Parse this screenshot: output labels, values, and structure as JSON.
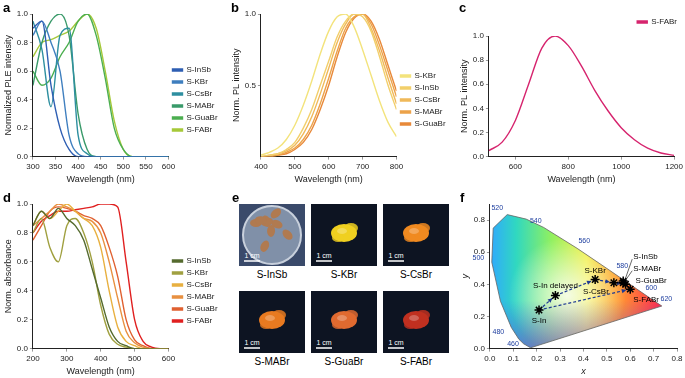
{
  "chart_data": [
    {
      "type": "line",
      "title": "a",
      "x_label": "Wavelength (nm)",
      "y_label": "Normalized PLE intensity",
      "xlim": [
        300,
        600
      ],
      "xticks": [
        300,
        350,
        400,
        450,
        500,
        550,
        600
      ],
      "ylim": [
        0,
        1
      ],
      "yticks": [
        {
          "value": 0,
          "label": "0.0"
        },
        0.2,
        0.4,
        0.6,
        0.8,
        {
          "value": 1,
          "label": "1.0"
        }
      ],
      "grid": false,
      "legend": "right",
      "x": [
        300,
        320,
        340,
        360,
        380,
        400,
        420,
        440,
        460,
        480,
        500,
        520,
        540,
        560,
        580,
        600
      ],
      "series": [
        {
          "name": "S-InSb",
          "color": "#2f5fb3",
          "values": [
            0.9,
            0.95,
            0.5,
            0.2,
            0.05,
            0,
            0,
            0,
            0,
            0,
            0,
            0,
            0,
            0,
            0,
            0
          ]
        },
        {
          "name": "S-KBr",
          "color": "#3f7fbf",
          "values": [
            0.85,
            0.95,
            0.8,
            0.6,
            0.15,
            0.02,
            0,
            0,
            0,
            0,
            0,
            0,
            0,
            0,
            0,
            0
          ]
        },
        {
          "name": "S-CsBr",
          "color": "#2e8fa0",
          "values": [
            0.95,
            0.75,
            0.35,
            0.85,
            0.9,
            0.15,
            0.02,
            0,
            0,
            0,
            0,
            0,
            0,
            0,
            0,
            0
          ]
        },
        {
          "name": "S-MABr",
          "color": "#3a9a6a",
          "values": [
            0.5,
            0.8,
            0.95,
            1.0,
            0.85,
            0.3,
            0.05,
            0,
            0,
            0,
            0,
            0,
            0,
            0,
            0,
            0
          ]
        },
        {
          "name": "S-GuaBr",
          "color": "#4caf50",
          "values": [
            0.6,
            0.5,
            0.55,
            0.7,
            0.8,
            0.95,
            1.0,
            0.85,
            0.55,
            0.2,
            0.05,
            0,
            0,
            0,
            0,
            0
          ]
        },
        {
          "name": "S-FABr",
          "color": "#a6c93a",
          "values": [
            0.7,
            0.8,
            0.82,
            0.85,
            0.88,
            0.95,
            1.0,
            0.9,
            0.6,
            0.25,
            0.05,
            0,
            0,
            0,
            0,
            0
          ]
        }
      ]
    },
    {
      "type": "line",
      "title": "b",
      "x_label": "Wavelength (nm)",
      "y_label": "Norm. PL intensity",
      "xlim": [
        400,
        800
      ],
      "xticks": [
        400,
        500,
        600,
        700,
        800
      ],
      "ylim": [
        0,
        1
      ],
      "yticks": [
        0.5,
        {
          "value": 1,
          "label": "1.0"
        }
      ],
      "grid": false,
      "legend": "right",
      "x": [
        400,
        425,
        450,
        475,
        500,
        525,
        550,
        575,
        600,
        625,
        650,
        675,
        700,
        725,
        750,
        775,
        800
      ],
      "series": [
        {
          "name": "S-KBr",
          "color": "#f3e37c",
          "values": [
            0.01,
            0.03,
            0.06,
            0.12,
            0.22,
            0.36,
            0.53,
            0.72,
            0.88,
            0.98,
            1.0,
            0.91,
            0.75,
            0.57,
            0.39,
            0.24,
            0.14
          ]
        },
        {
          "name": "S-InSb",
          "color": "#f2cf6b",
          "values": [
            0.0,
            0.01,
            0.02,
            0.05,
            0.1,
            0.2,
            0.33,
            0.5,
            0.67,
            0.84,
            0.95,
            1.0,
            0.98,
            0.88,
            0.7,
            0.5,
            0.33
          ]
        },
        {
          "name": "S-CsBr",
          "color": "#f0b95a",
          "values": [
            0.0,
            0.01,
            0.02,
            0.04,
            0.08,
            0.16,
            0.28,
            0.44,
            0.62,
            0.8,
            0.93,
            1.0,
            1.0,
            0.9,
            0.74,
            0.55,
            0.37
          ]
        },
        {
          "name": "S-MABr",
          "color": "#eca24a",
          "values": [
            0.0,
            0.0,
            0.01,
            0.03,
            0.06,
            0.12,
            0.22,
            0.37,
            0.55,
            0.74,
            0.9,
            0.98,
            1.0,
            0.93,
            0.78,
            0.6,
            0.42
          ]
        },
        {
          "name": "S-GuaBr",
          "color": "#e8893a",
          "values": [
            0.0,
            0.0,
            0.01,
            0.02,
            0.05,
            0.1,
            0.19,
            0.33,
            0.5,
            0.7,
            0.87,
            0.97,
            1.0,
            0.95,
            0.82,
            0.64,
            0.46
          ]
        }
      ]
    },
    {
      "type": "line",
      "title": "c",
      "x_label": "Wavelength (nm)",
      "y_label": "Norm. PL intensity",
      "xlim": [
        500,
        1200
      ],
      "xticks": [
        600,
        800,
        1000,
        1200
      ],
      "ylim": [
        0,
        1
      ],
      "yticks": [
        {
          "value": 0,
          "label": "0.0"
        },
        0.2,
        0.4,
        0.6,
        0.8,
        {
          "value": 1,
          "label": "1.0"
        }
      ],
      "grid": false,
      "legend": "top",
      "x": [
        500,
        550,
        600,
        650,
        700,
        750,
        800,
        850,
        900,
        950,
        1000,
        1050,
        1100,
        1150,
        1200
      ],
      "series": [
        {
          "name": "S-FABr",
          "color": "#d6246e",
          "values": [
            0.05,
            0.12,
            0.3,
            0.6,
            0.9,
            1.0,
            0.92,
            0.75,
            0.55,
            0.38,
            0.24,
            0.14,
            0.07,
            0.03,
            0.01
          ]
        }
      ]
    },
    {
      "type": "line",
      "title": "d",
      "x_label": "Wavelength (nm)",
      "y_label": "Norm. absorbance",
      "xlim": [
        200,
        600
      ],
      "xticks": [
        200,
        300,
        400,
        500,
        600
      ],
      "ylim": [
        0,
        1
      ],
      "yticks": [
        {
          "value": 0,
          "label": "0.0"
        },
        0.2,
        0.4,
        0.6,
        0.8,
        {
          "value": 1,
          "label": "1.0"
        }
      ],
      "grid": false,
      "legend": "right",
      "x": [
        200,
        225,
        250,
        275,
        300,
        325,
        350,
        375,
        400,
        425,
        450,
        475,
        500,
        525,
        550,
        575,
        600
      ],
      "series": [
        {
          "name": "S-InSb",
          "color": "#556b2f",
          "values": [
            0.85,
            0.95,
            0.9,
            0.97,
            0.9,
            0.85,
            0.75,
            0.55,
            0.35,
            0.15,
            0.05,
            0.02,
            0,
            0,
            0,
            0,
            0
          ]
        },
        {
          "name": "S-KBr",
          "color": "#a0a040",
          "values": [
            0.8,
            0.9,
            0.7,
            0.6,
            0.85,
            0.9,
            0.8,
            0.6,
            0.3,
            0.1,
            0.03,
            0.01,
            0,
            0,
            0,
            0,
            0
          ]
        },
        {
          "name": "S-CsBr",
          "color": "#e8b040",
          "values": [
            0.85,
            0.95,
            0.9,
            0.95,
            1.0,
            0.95,
            0.9,
            0.85,
            0.7,
            0.4,
            0.15,
            0.05,
            0.02,
            0,
            0,
            0,
            0
          ]
        },
        {
          "name": "S-MABr",
          "color": "#e89040",
          "values": [
            0.85,
            0.9,
            0.95,
            1.0,
            0.98,
            0.95,
            0.9,
            0.88,
            0.8,
            0.6,
            0.35,
            0.12,
            0.04,
            0.01,
            0,
            0,
            0
          ]
        },
        {
          "name": "S-GuaBr",
          "color": "#e06030",
          "values": [
            0.75,
            0.85,
            0.95,
            0.98,
            0.97,
            0.95,
            0.92,
            0.9,
            0.85,
            0.7,
            0.5,
            0.2,
            0.06,
            0.02,
            0,
            0,
            0
          ]
        },
        {
          "name": "S-FABr",
          "color": "#e02020",
          "values": [
            0.8,
            0.88,
            0.92,
            0.95,
            0.95,
            0.96,
            0.97,
            0.98,
            1.0,
            1.0,
            0.98,
            0.6,
            0.2,
            0.05,
            0.01,
            0,
            0
          ]
        }
      ]
    },
    {
      "type": "scatter",
      "title": "f",
      "x_label": "x",
      "y_label": "y",
      "xlim": [
        0,
        0.8
      ],
      "xticks": [
        {
          "value": 0,
          "label": "0.0"
        },
        0.1,
        0.2,
        0.3,
        0.4,
        0.5,
        0.6,
        0.7,
        0.8
      ],
      "ylim": [
        0,
        0.9
      ],
      "yticks": [
        {
          "value": 0,
          "label": "0.0"
        },
        0.2,
        0.4,
        0.6,
        0.8
      ],
      "grid": false,
      "marker": "star",
      "color": "#000000",
      "points": [
        {
          "label": "S-In",
          "x": 0.21,
          "y": 0.24
        },
        {
          "label": "S-In delayed",
          "x": 0.28,
          "y": 0.33
        },
        {
          "label": "S-KBr",
          "x": 0.45,
          "y": 0.43
        },
        {
          "label": "S-CsBr",
          "x": 0.53,
          "y": 0.41
        },
        {
          "label": "S-InSb",
          "x": 0.57,
          "y": 0.42
        },
        {
          "label": "S-MABr",
          "x": 0.57,
          "y": 0.41
        },
        {
          "label": "S-GuaBr",
          "x": 0.58,
          "y": 0.4
        },
        {
          "label": "S-FABr",
          "x": 0.6,
          "y": 0.37
        }
      ],
      "paths": {
        "color": "#1f3a93",
        "line_style": "dashed",
        "routes": [
          [
            "S-In",
            "S-In delayed",
            "S-KBr",
            "S-CsBr",
            "S-GuaBr"
          ],
          [
            "S-In",
            "S-FABr"
          ]
        ]
      },
      "locus": {
        "color": "#2040a0",
        "x": [
          0.174,
          0.144,
          0.124,
          0.091,
          0.045,
          0.008,
          0.014,
          0.074,
          0.155,
          0.23,
          0.373,
          0.512,
          0.627,
          0.691,
          0.735
        ],
        "y": [
          0.005,
          0.03,
          0.058,
          0.133,
          0.295,
          0.538,
          0.75,
          0.834,
          0.806,
          0.754,
          0.624,
          0.487,
          0.372,
          0.308,
          0.265
        ],
        "labels": [
          null,
          460,
          null,
          480,
          null,
          500,
          null,
          520,
          null,
          540,
          560,
          580,
          600,
          620,
          null
        ]
      }
    }
  ],
  "photos": {
    "title": "e",
    "items": [
      {
        "label": "S-InSb",
        "scale_bar": "1 cm",
        "color": "#b07a50"
      },
      {
        "label": "S-KBr",
        "scale_bar": "1 cm",
        "color": "#f0d020"
      },
      {
        "label": "S-CsBr",
        "scale_bar": "1 cm",
        "color": "#f08a20"
      },
      {
        "label": "S-MABr",
        "scale_bar": "1 cm",
        "color": "#e87a20"
      },
      {
        "label": "S-GuaBr",
        "scale_bar": "1 cm",
        "color": "#e06a30"
      },
      {
        "label": "S-FABr",
        "scale_bar": "1 cm",
        "color": "#c03020"
      }
    ]
  }
}
